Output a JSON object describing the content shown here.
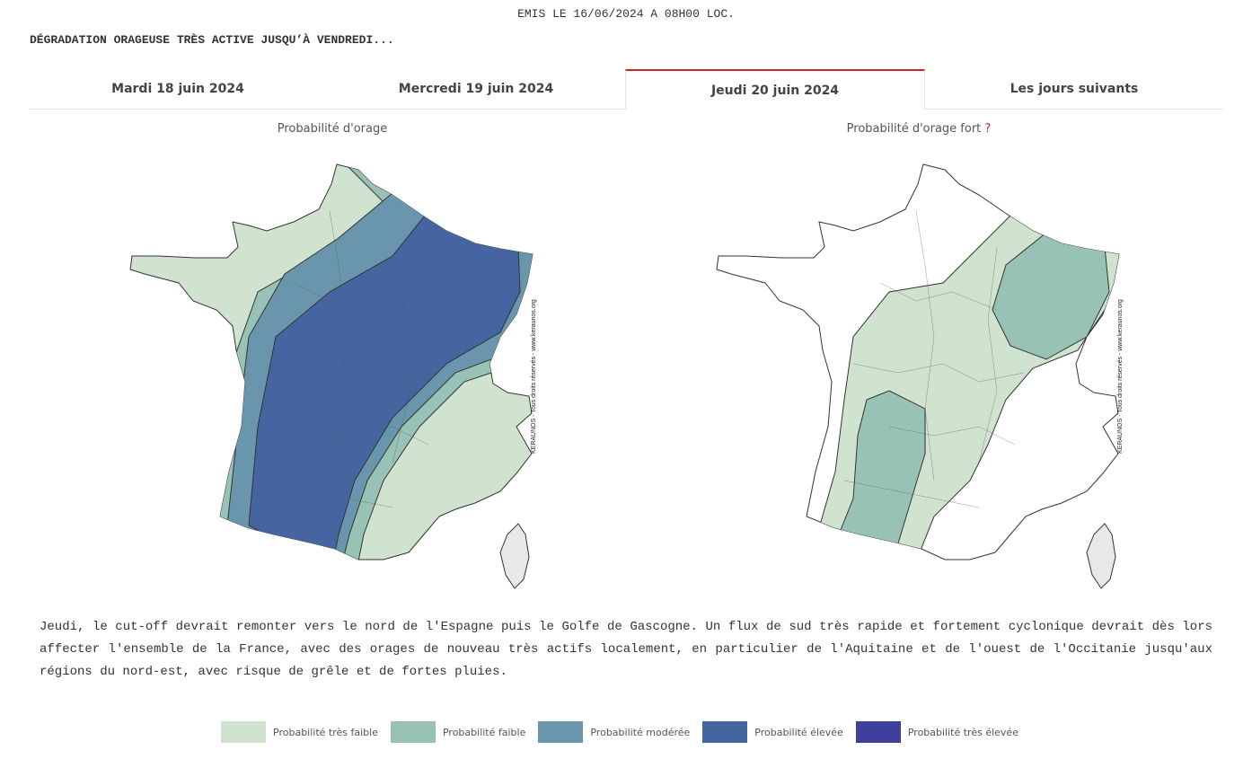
{
  "header": {
    "issued": "EMIS LE 16/06/2024 A 08H00 LOC.",
    "headline": "DÉGRADATION ORAGEUSE TRÈS ACTIVE JUSQU’À VENDREDI..."
  },
  "tabs": [
    {
      "label": "Mardi 18 juin 2024",
      "active": false
    },
    {
      "label": "Mercredi 19 juin 2024",
      "active": false
    },
    {
      "label": "Jeudi 20 juin 2024",
      "active": true
    },
    {
      "label": "Les jours suivants",
      "active": false
    }
  ],
  "maps": {
    "left": {
      "title": "Probabilité d'orage",
      "credit": "KERAUNOS - Tous droits réservés - www.keraunos.org"
    },
    "right": {
      "title": "Probabilité d'orage fort",
      "help": "?",
      "credit": "KERAUNOS - Tous droits réservés - www.keraunos.org"
    }
  },
  "description": "Jeudi, le cut-off devrait remonter vers le nord de l'Espagne puis le Golfe de Gascogne. Un flux de sud très rapide et fortement cyclonique devrait dès lors affecter l'ensemble de la France, avec des orages de nouveau très actifs localement, en particulier de l'Aquitaine et de l'ouest de l'Occitanie jusqu'aux régions du nord-est, avec risque de grêle et de fortes pluies.",
  "legend": [
    {
      "label": "Probabilité très faible",
      "color": "#cfe3cf"
    },
    {
      "label": "Probabilité faible",
      "color": "#97c2b5"
    },
    {
      "label": "Probabilité modérée",
      "color": "#6a96ad"
    },
    {
      "label": "Probabilité élevée",
      "color": "#4565a0"
    },
    {
      "label": "Probabilité très élevée",
      "color": "#3f3f9e"
    }
  ]
}
